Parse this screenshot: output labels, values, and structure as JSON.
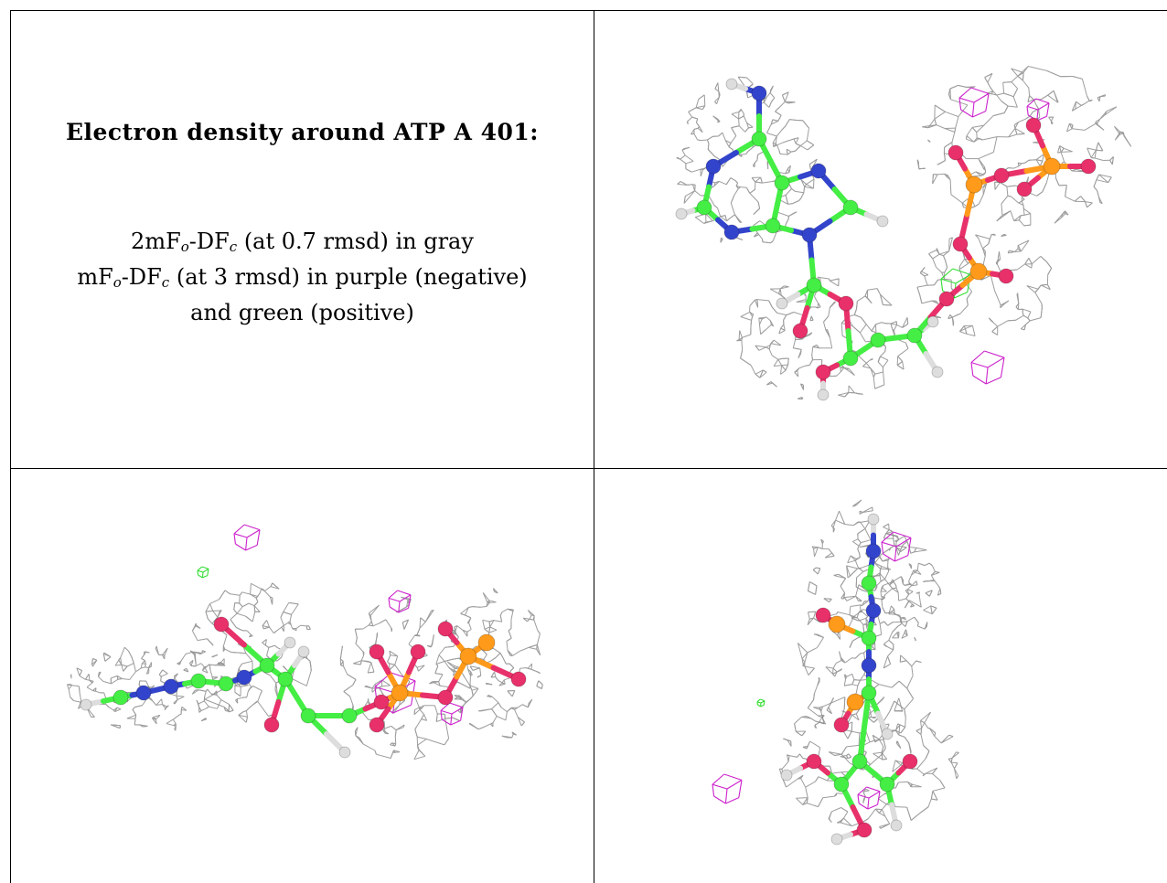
{
  "figure": {
    "title": "Electron density around ATP A 401:",
    "legend": {
      "line1": {
        "a": "2mF",
        "sub_o": "o",
        "b": "-DF",
        "sub_c": "c",
        "c": " (at 0.7 rmsd) in gray"
      },
      "line2": {
        "a": "mF",
        "sub_o": "o",
        "b": "-DF",
        "sub_c": "c",
        "c": " (at 3 rmsd) in purple (negative)"
      },
      "line3": "and green (positive)"
    }
  },
  "colors": {
    "mesh_2fofc": "#8c8c8c",
    "mesh_negative": "#cc22cc",
    "mesh_positive": "#33dd33",
    "carbon": "#44ee44",
    "nitrogen": "#3344cc",
    "oxygen": "#e8306a",
    "phosphorus": "#ff9a1a",
    "hydrogen": "#dddddd"
  },
  "panels": [
    {
      "view": "top-right",
      "molecule": "ATP A 401"
    },
    {
      "view": "bottom-left",
      "molecule": "ATP A 401"
    },
    {
      "view": "bottom-right",
      "molecule": "ATP A 401"
    }
  ]
}
